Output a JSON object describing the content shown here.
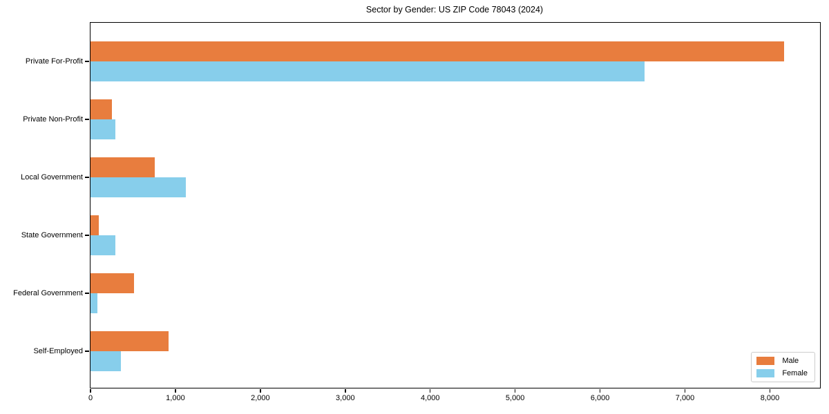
{
  "title": "Sector by Gender: US ZIP Code 78043 (2024)",
  "colors": {
    "male": "#e87d3e",
    "female": "#87ceeb",
    "axis": "#000000",
    "legend_border": "#cccccc",
    "background": "#ffffff"
  },
  "chart_data": {
    "type": "bar",
    "orientation": "horizontal",
    "title": "Sector by Gender: US ZIP Code 78043 (2024)",
    "categories": [
      "Private For-Profit",
      "Private Non-Profit",
      "Local Government",
      "State Government",
      "Federal Government",
      "Self-Employed"
    ],
    "series": [
      {
        "name": "Male",
        "color": "#e87d3e",
        "values": [
          8170,
          250,
          755,
          100,
          510,
          920
        ]
      },
      {
        "name": "Female",
        "color": "#87ceeb",
        "values": [
          6520,
          290,
          1125,
          290,
          85,
          360
        ]
      }
    ],
    "xlabel": "",
    "ylabel": "",
    "xlim": [
      0,
      8590
    ],
    "xticks": [
      0,
      1000,
      2000,
      3000,
      4000,
      5000,
      6000,
      7000,
      8000
    ],
    "xtick_labels": [
      "0",
      "1,000",
      "2,000",
      "3,000",
      "4,000",
      "5,000",
      "6,000",
      "7,000",
      "8,000"
    ],
    "grid": false,
    "legend_position": "lower right"
  }
}
